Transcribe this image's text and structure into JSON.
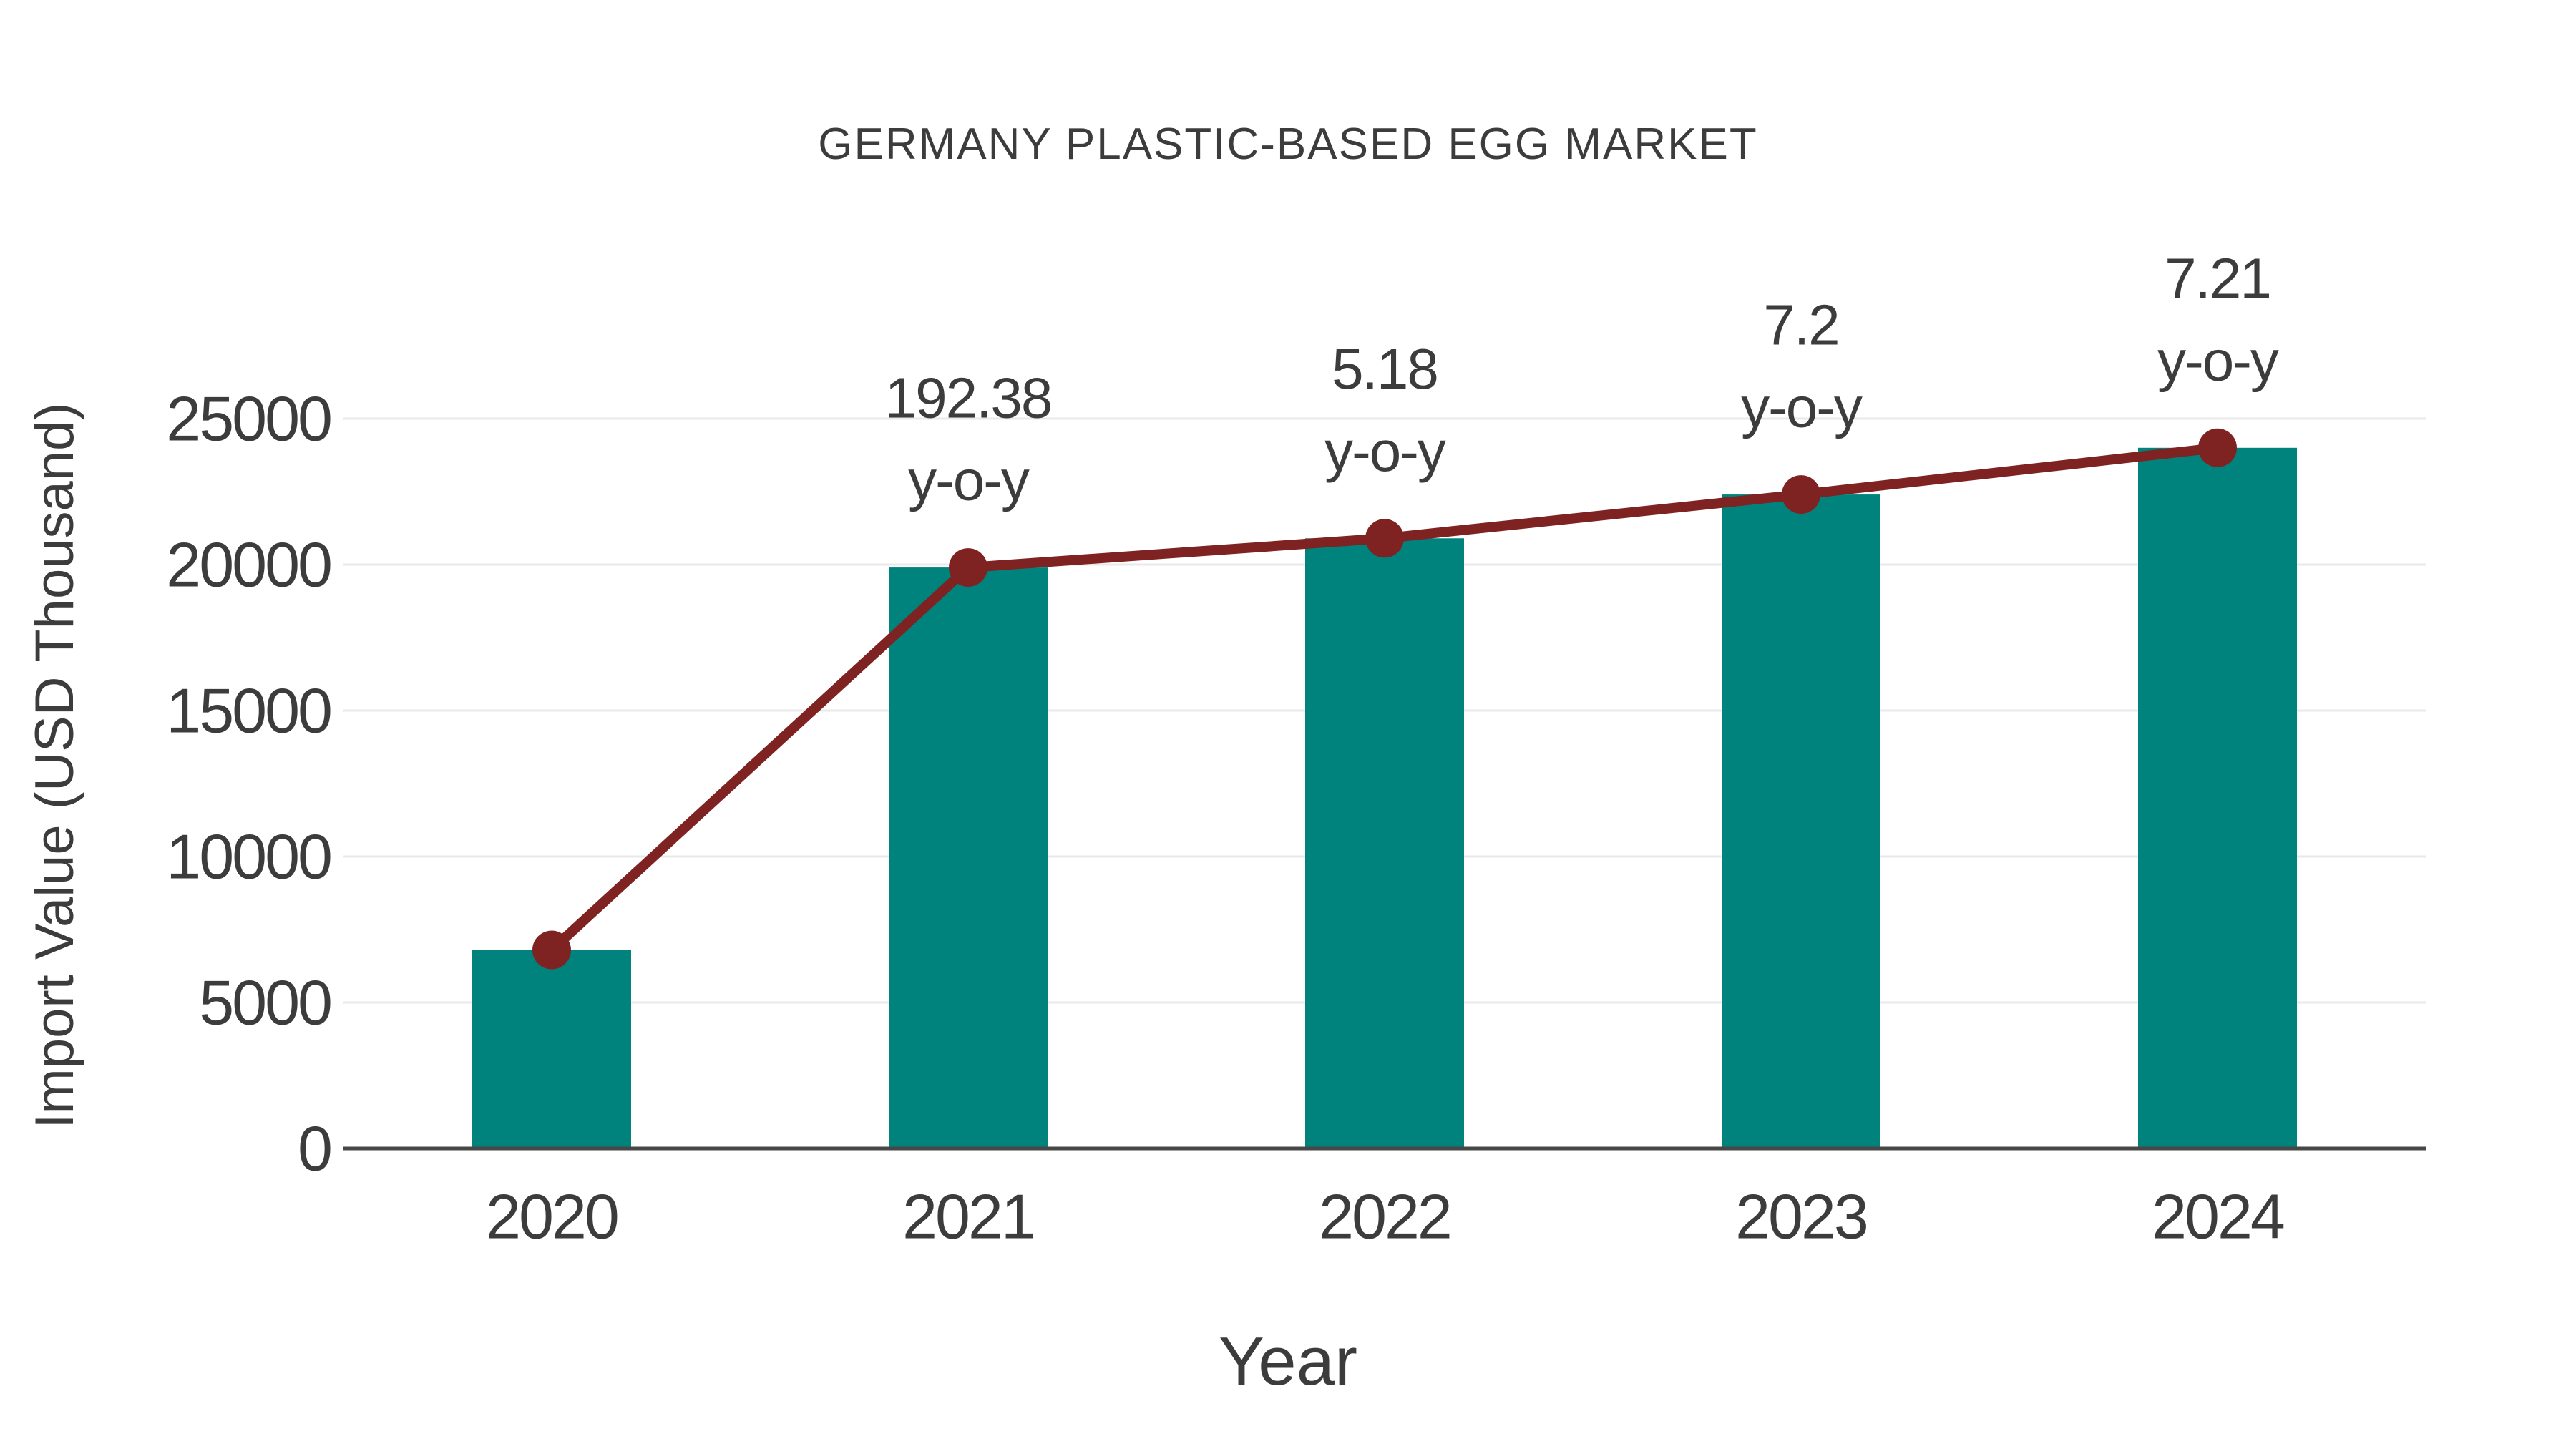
{
  "title": "GERMANY PLASTIC-BASED EGG MARKET",
  "axes": {
    "x_title": "Year",
    "y_title": "Import Value (USD Thousand)"
  },
  "colors": {
    "bar": "#00837d",
    "line": "#7e2222",
    "marker": "#7e2222",
    "grid": "#e9e9e9",
    "axis_line": "#474747",
    "text": "#3c3c3c",
    "background": "#ffffff"
  },
  "chart_data": {
    "type": "bar",
    "title": "GERMANY PLASTIC-BASED EGG MARKET",
    "categories": [
      "2020",
      "2021",
      "2022",
      "2023",
      "2024"
    ],
    "values": [
      6800,
      19900,
      20900,
      22400,
      24000
    ],
    "line_overlay": {
      "name": "import-value-trend-line",
      "follows_bar_tops": true,
      "markers": true
    },
    "yoy_labels": [
      "",
      "192.38",
      "5.18",
      "7.2",
      "7.21"
    ],
    "yoy_suffix": "y-o-y",
    "xlabel": "Year",
    "ylabel": "Import Value (USD Thousand)",
    "ylim": [
      0,
      25000
    ],
    "yticks": [
      0,
      5000,
      10000,
      15000,
      20000,
      25000
    ],
    "grid": true,
    "legend": false
  }
}
